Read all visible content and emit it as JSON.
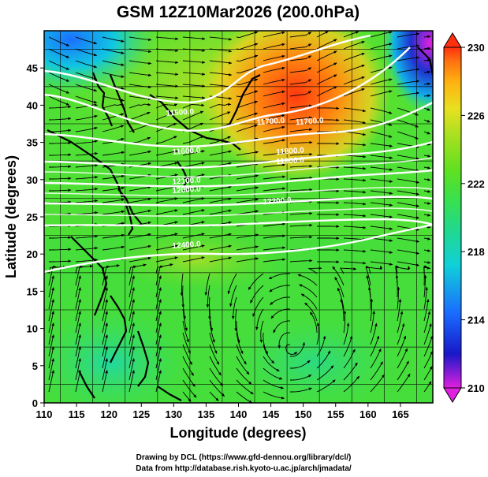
{
  "title": "GSM 12Z10Mar2026 (200.0hPa)",
  "x_axis": {
    "label": "Longitude (degrees)",
    "ticks": [
      "110",
      "115",
      "120",
      "125",
      "130",
      "135",
      "140",
      "145",
      "150",
      "155",
      "160",
      "165"
    ]
  },
  "y_axis": {
    "label": "Latitude  (degrees)",
    "ticks": [
      "0",
      "5",
      "10",
      "15",
      "20",
      "25",
      "30",
      "35",
      "40",
      "45"
    ]
  },
  "colorbar": {
    "ticks": [
      "210",
      "214",
      "218",
      "222",
      "226",
      "230"
    ],
    "colors": [
      "#e020e0",
      "#1818c8",
      "#1a6cff",
      "#10d0d8",
      "#20d890",
      "#38e050",
      "#60e020",
      "#a0e020",
      "#e8e020",
      "#ffb010",
      "#ff7010",
      "#ff3010"
    ]
  },
  "credits": {
    "line1": "Drawing by DCL (https://www.gfd-dennou.org/library/dcl/)",
    "line2": "Data from http://database.rish.kyoto-u.ac.jp/arch/jmadata/"
  },
  "chart_data": {
    "type": "map",
    "title": "GSM 12Z10Mar2026 (200.0hPa)",
    "xlabel": "Longitude (degrees)",
    "ylabel": "Latitude  (degrees)",
    "xlim": [
      110,
      170
    ],
    "ylim": [
      0,
      50
    ],
    "colorbar_range": [
      210,
      230
    ],
    "color_field": "temperature (K)",
    "contour_labels": [
      {
        "text": "11500.0",
        "lon": 131,
        "lat": 38.7
      },
      {
        "text": "11700.0",
        "lon": 145,
        "lat": 37.5
      },
      {
        "text": "11700.0",
        "lon": 151,
        "lat": 37.5
      },
      {
        "text": "11600.0",
        "lon": 132,
        "lat": 33.5
      },
      {
        "text": "11800.0",
        "lon": 148,
        "lat": 33.5
      },
      {
        "text": "11900.0",
        "lon": 148,
        "lat": 32.2
      },
      {
        "text": "12100.0",
        "lon": 132,
        "lat": 29.5
      },
      {
        "text": "12000.0",
        "lon": 132,
        "lat": 28.3
      },
      {
        "text": "12200.0",
        "lon": 146,
        "lat": 26.8
      },
      {
        "text": "12400.0",
        "lon": 132,
        "lat": 20.9
      }
    ]
  }
}
